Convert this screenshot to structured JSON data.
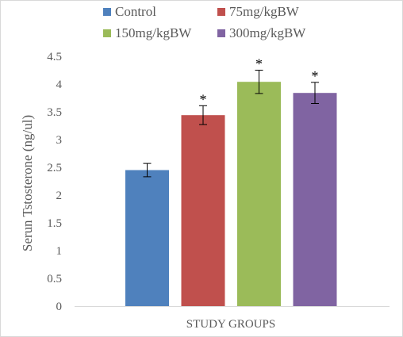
{
  "chart_data": {
    "type": "bar",
    "title": "",
    "xlabel": "STUDY GROUPS",
    "ylabel": "Serun Tstosterone (ng/ul)",
    "ylim": [
      0,
      4.5
    ],
    "yticks": [
      "0",
      "0.5",
      "1",
      "1.5",
      "2",
      "2.5",
      "3",
      "3.5",
      "4",
      "4.5"
    ],
    "grid": false,
    "legend_position": "top",
    "series": [
      {
        "name": "Control",
        "value": 2.45,
        "error": 0.12,
        "color": "#4f81bd",
        "annotation": ""
      },
      {
        "name": "75mg/kgBW",
        "value": 3.44,
        "error": 0.17,
        "color": "#c0504d",
        "annotation": "*"
      },
      {
        "name": "150mg/kgBW",
        "value": 4.04,
        "error": 0.21,
        "color": "#9bbb59",
        "annotation": "*"
      },
      {
        "name": "300mg/kgBW",
        "value": 3.84,
        "error": 0.19,
        "color": "#8064a2",
        "annotation": "*"
      }
    ]
  }
}
